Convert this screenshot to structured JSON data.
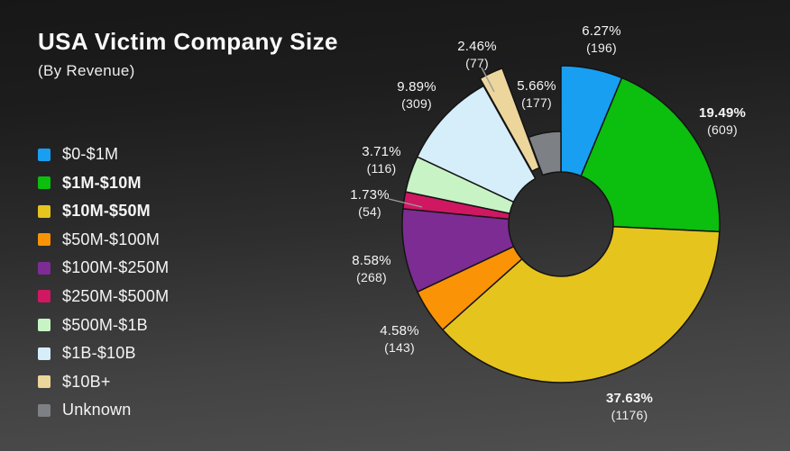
{
  "header": {
    "title": "USA Victim Company Size",
    "subtitle": "(By Revenue)"
  },
  "chart_data": {
    "type": "pie",
    "donut": true,
    "title": "USA Victim Company Size",
    "subtitle": "(By Revenue)",
    "legend_position": "left",
    "start_angle": "12 o'clock",
    "direction": "clockwise",
    "label_format": "percent over count in parentheses",
    "slices": [
      {
        "label": "$0-$1M",
        "pct": 6.27,
        "count": 196,
        "color": "#189ff2",
        "bold": false
      },
      {
        "label": "$1M-$10M",
        "pct": 19.49,
        "count": 609,
        "color": "#0cbe0e",
        "bold": true
      },
      {
        "label": "$10M-$50M",
        "pct": 37.63,
        "count": 1176,
        "color": "#e6c41e",
        "bold": true
      },
      {
        "label": "$50M-$100M",
        "pct": 4.58,
        "count": 143,
        "color": "#fb9306",
        "bold": false
      },
      {
        "label": "$100M-$250M",
        "pct": 8.58,
        "count": 268,
        "color": "#7d2c93",
        "bold": false
      },
      {
        "label": "$250M-$500M",
        "pct": 1.73,
        "count": 54,
        "color": "#d01762",
        "bold": false
      },
      {
        "label": "$500M-$1B",
        "pct": 3.71,
        "count": 116,
        "color": "#c8f4c5",
        "bold": false
      },
      {
        "label": "$1B-$10B",
        "pct": 9.89,
        "count": 309,
        "color": "#d6edfa",
        "bold": false
      },
      {
        "label": "$10B+",
        "pct": 2.46,
        "count": 77,
        "color": "#edd69c",
        "bold": false
      },
      {
        "label": "Unknown",
        "pct": 5.66,
        "count": 177,
        "color": "#7d8084",
        "bold": false
      }
    ]
  }
}
